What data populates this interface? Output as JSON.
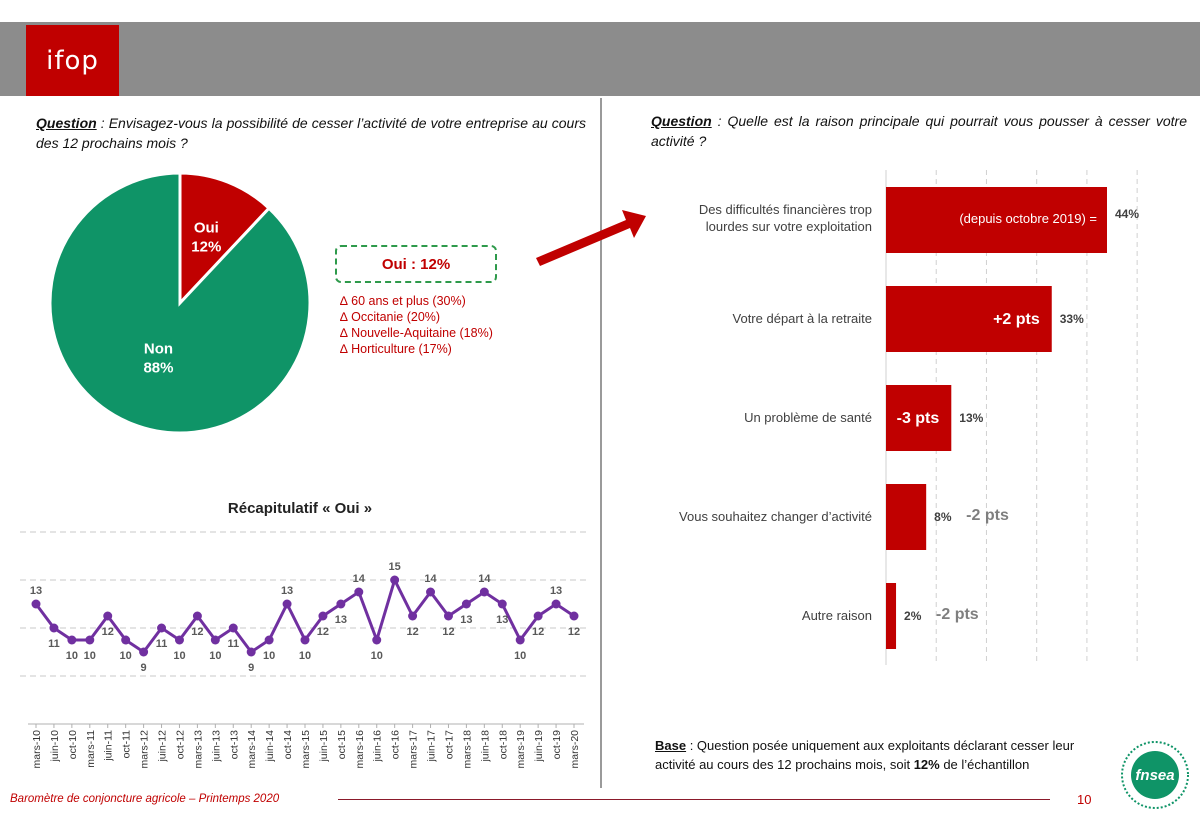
{
  "header": {
    "logo_text": "ifop"
  },
  "left": {
    "question_key": "Question",
    "question_text": " : Envisagez-vous la possibilité de cesser l’activité de votre entreprise au cours des 12 prochains mois ?",
    "callout": "Oui : 12%",
    "deltas": [
      "∆ 60 ans et plus (30%)",
      "∆ Occitanie (20%)",
      "∆ Nouvelle-Aquitaine (18%)",
      "∆ Horticulture (17%)"
    ],
    "recap_title": "Récapitulatif « Oui »"
  },
  "right": {
    "question_key": "Question",
    "question_text": " : Quelle est la raison principale qui pourrait vous pousser à cesser votre activité ?",
    "base_key": "Base",
    "base_text_1": " : Question posée uniquement aux exploitants déclarant cesser leur activité au cours des 12 prochains mois, soit ",
    "base_bold": "12%",
    "base_text_2": " de l’échantillon"
  },
  "footer": {
    "title": "Baromètre de conjoncture agricole – Printemps 2020",
    "page": "10",
    "brand_text": "fnsea"
  },
  "colors": {
    "red": "#c00000",
    "green": "#0f9467",
    "purple": "#7030a0",
    "gray_text": "#7f7f7f"
  },
  "chart_data": [
    {
      "type": "pie",
      "labels": [
        "Oui",
        "Non"
      ],
      "values": [
        12,
        88
      ],
      "display": [
        "12%",
        "88%"
      ],
      "colors": [
        "#c00000",
        "#0f9467"
      ]
    },
    {
      "type": "line",
      "title": "Récapitulatif « Oui »",
      "x": [
        "mars-10",
        "juin-10",
        "oct-10",
        "mars-11",
        "juin-11",
        "oct-11",
        "mars-12",
        "juin-12",
        "oct-12",
        "mars-13",
        "juin-13",
        "oct-13",
        "mars-14",
        "juin-14",
        "oct-14",
        "mars-15",
        "juin-15",
        "oct-15",
        "mars-16",
        "juin-16",
        "oct-16",
        "mars-17",
        "juin-17",
        "oct-17",
        "mars-18",
        "juin-18",
        "oct-18",
        "mars-19",
        "juin-19",
        "oct-19",
        "mars-20"
      ],
      "values": [
        13,
        11,
        10,
        10,
        12,
        10,
        9,
        11,
        10,
        12,
        10,
        11,
        9,
        10,
        13,
        10,
        12,
        13,
        14,
        10,
        15,
        12,
        14,
        12,
        13,
        14,
        13,
        10,
        12,
        13,
        12
      ],
      "color": "#7030a0"
    },
    {
      "type": "bar",
      "orientation": "horizontal",
      "categories": [
        "Des difficultés financières trop lourdes sur votre exploitation",
        "Votre départ à la retraite",
        "Un problème de santé",
        "Vous souhaitez changer d’activité",
        "Autre raison"
      ],
      "values": [
        44,
        33,
        13,
        8,
        2
      ],
      "value_labels": [
        "44%",
        "33%",
        "13%",
        "8%",
        "2%"
      ],
      "evolution": [
        "=",
        "+2 pts",
        "-3 pts",
        "-2 pts",
        "-2 pts"
      ],
      "evolution_note": "(depuis octobre 2019)",
      "color": "#c00000",
      "xlim": [
        0,
        50
      ]
    }
  ]
}
